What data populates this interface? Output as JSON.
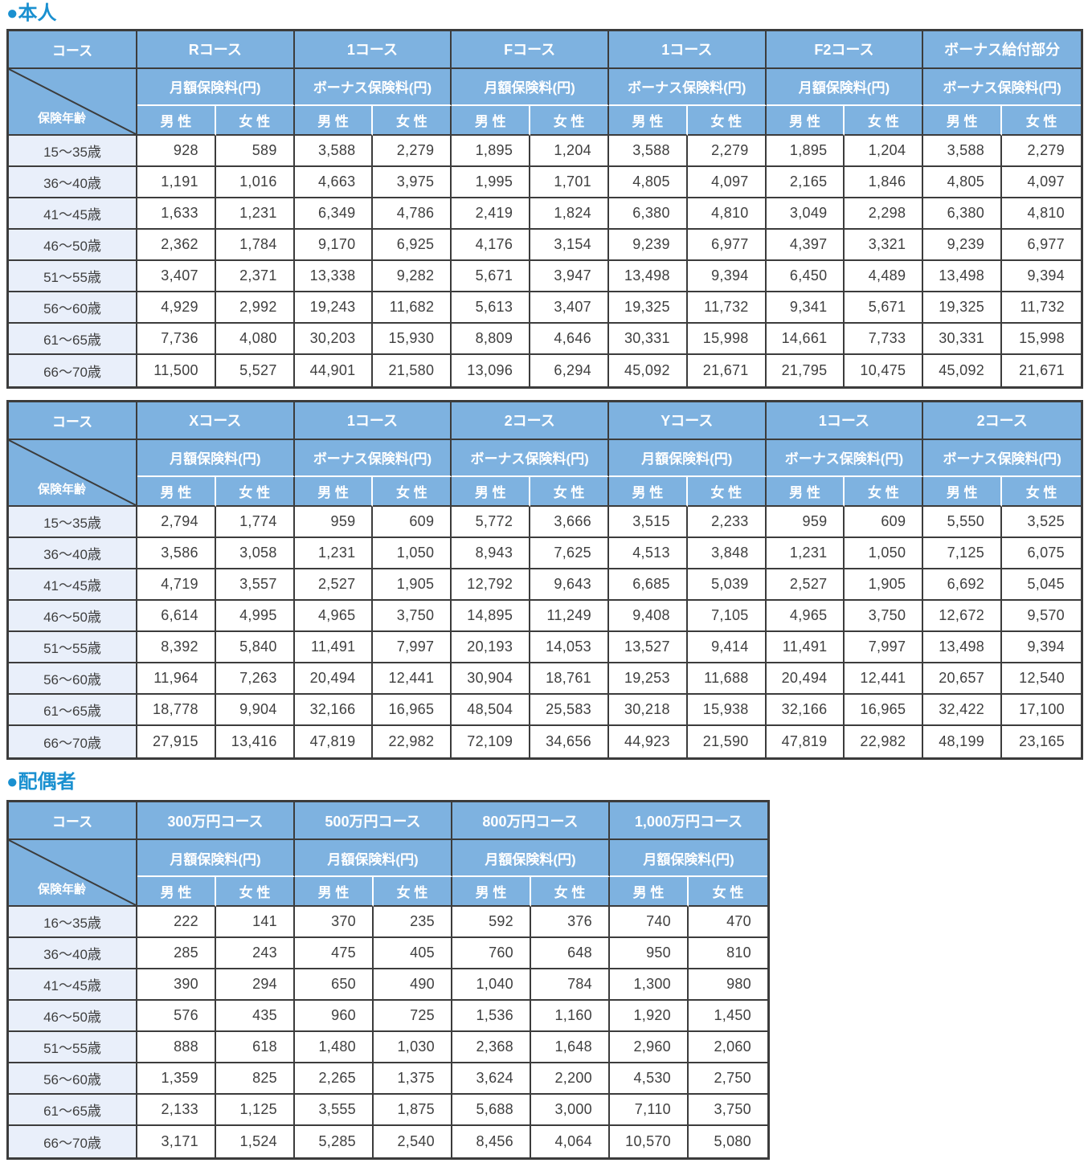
{
  "sections": {
    "person_title": "●本人",
    "spouse_title": "●配偶者"
  },
  "labels": {
    "course": "コース",
    "insurance_age": "保険年齢",
    "male": "男 性",
    "female": "女 性"
  },
  "colors": {
    "title_blue": "#1a90d0",
    "header_blue": "#7eb2e0",
    "age_cell_blue": "#e9effa",
    "border_dark": "#3c3c3c"
  },
  "tables": [
    {
      "section": "本人",
      "groups": [
        {
          "course": "Rコース",
          "premium_type": "月額保険料(円)"
        },
        {
          "course": "1コース",
          "premium_type": "ボーナス保険料(円)"
        },
        {
          "course": "Fコース",
          "premium_type": "月額保険料(円)"
        },
        {
          "course": "1コース",
          "premium_type": "ボーナス保険料(円)"
        },
        {
          "course": "F2コース",
          "premium_type": "月額保険料(円)"
        },
        {
          "course": "ボーナス給付部分",
          "premium_type": "ボーナス保険料(円)"
        }
      ],
      "rows": [
        {
          "age": "15〜35歳",
          "values": [
            "928",
            "589",
            "3,588",
            "2,279",
            "1,895",
            "1,204",
            "3,588",
            "2,279",
            "1,895",
            "1,204",
            "3,588",
            "2,279"
          ]
        },
        {
          "age": "36〜40歳",
          "values": [
            "1,191",
            "1,016",
            "4,663",
            "3,975",
            "1,995",
            "1,701",
            "4,805",
            "4,097",
            "2,165",
            "1,846",
            "4,805",
            "4,097"
          ]
        },
        {
          "age": "41〜45歳",
          "values": [
            "1,633",
            "1,231",
            "6,349",
            "4,786",
            "2,419",
            "1,824",
            "6,380",
            "4,810",
            "3,049",
            "2,298",
            "6,380",
            "4,810"
          ]
        },
        {
          "age": "46〜50歳",
          "values": [
            "2,362",
            "1,784",
            "9,170",
            "6,925",
            "4,176",
            "3,154",
            "9,239",
            "6,977",
            "4,397",
            "3,321",
            "9,239",
            "6,977"
          ]
        },
        {
          "age": "51〜55歳",
          "values": [
            "3,407",
            "2,371",
            "13,338",
            "9,282",
            "5,671",
            "3,947",
            "13,498",
            "9,394",
            "6,450",
            "4,489",
            "13,498",
            "9,394"
          ]
        },
        {
          "age": "56〜60歳",
          "values": [
            "4,929",
            "2,992",
            "19,243",
            "11,682",
            "5,613",
            "3,407",
            "19,325",
            "11,732",
            "9,341",
            "5,671",
            "19,325",
            "11,732"
          ]
        },
        {
          "age": "61〜65歳",
          "values": [
            "7,736",
            "4,080",
            "30,203",
            "15,930",
            "8,809",
            "4,646",
            "30,331",
            "15,998",
            "14,661",
            "7,733",
            "30,331",
            "15,998"
          ]
        },
        {
          "age": "66〜70歳",
          "values": [
            "11,500",
            "5,527",
            "44,901",
            "21,580",
            "13,096",
            "6,294",
            "45,092",
            "21,671",
            "21,795",
            "10,475",
            "45,092",
            "21,671"
          ]
        }
      ]
    },
    {
      "section": "本人",
      "groups": [
        {
          "course": "Xコース",
          "premium_type": "月額保険料(円)"
        },
        {
          "course": "1コース",
          "premium_type": "ボーナス保険料(円)"
        },
        {
          "course": "2コース",
          "premium_type": "ボーナス保険料(円)"
        },
        {
          "course": "Yコース",
          "premium_type": "月額保険料(円)"
        },
        {
          "course": "1コース",
          "premium_type": "ボーナス保険料(円)"
        },
        {
          "course": "2コース",
          "premium_type": "ボーナス保険料(円)"
        }
      ],
      "rows": [
        {
          "age": "15〜35歳",
          "values": [
            "2,794",
            "1,774",
            "959",
            "609",
            "5,772",
            "3,666",
            "3,515",
            "2,233",
            "959",
            "609",
            "5,550",
            "3,525"
          ]
        },
        {
          "age": "36〜40歳",
          "values": [
            "3,586",
            "3,058",
            "1,231",
            "1,050",
            "8,943",
            "7,625",
            "4,513",
            "3,848",
            "1,231",
            "1,050",
            "7,125",
            "6,075"
          ]
        },
        {
          "age": "41〜45歳",
          "values": [
            "4,719",
            "3,557",
            "2,527",
            "1,905",
            "12,792",
            "9,643",
            "6,685",
            "5,039",
            "2,527",
            "1,905",
            "6,692",
            "5,045"
          ]
        },
        {
          "age": "46〜50歳",
          "values": [
            "6,614",
            "4,995",
            "4,965",
            "3,750",
            "14,895",
            "11,249",
            "9,408",
            "7,105",
            "4,965",
            "3,750",
            "12,672",
            "9,570"
          ]
        },
        {
          "age": "51〜55歳",
          "values": [
            "8,392",
            "5,840",
            "11,491",
            "7,997",
            "20,193",
            "14,053",
            "13,527",
            "9,414",
            "11,491",
            "7,997",
            "13,498",
            "9,394"
          ]
        },
        {
          "age": "56〜60歳",
          "values": [
            "11,964",
            "7,263",
            "20,494",
            "12,441",
            "30,904",
            "18,761",
            "19,253",
            "11,688",
            "20,494",
            "12,441",
            "20,657",
            "12,540"
          ]
        },
        {
          "age": "61〜65歳",
          "values": [
            "18,778",
            "9,904",
            "32,166",
            "16,965",
            "48,504",
            "25,583",
            "30,218",
            "15,938",
            "32,166",
            "16,965",
            "32,422",
            "17,100"
          ]
        },
        {
          "age": "66〜70歳",
          "values": [
            "27,915",
            "13,416",
            "47,819",
            "22,982",
            "72,109",
            "34,656",
            "44,923",
            "21,590",
            "47,819",
            "22,982",
            "48,199",
            "23,165"
          ]
        }
      ]
    },
    {
      "section": "配偶者",
      "groups": [
        {
          "course": "300万円コース",
          "premium_type": "月額保険料(円)"
        },
        {
          "course": "500万円コース",
          "premium_type": "月額保険料(円)"
        },
        {
          "course": "800万円コース",
          "premium_type": "月額保険料(円)"
        },
        {
          "course": "1,000万円コース",
          "premium_type": "月額保険料(円)"
        }
      ],
      "rows": [
        {
          "age": "16〜35歳",
          "values": [
            "222",
            "141",
            "370",
            "235",
            "592",
            "376",
            "740",
            "470"
          ]
        },
        {
          "age": "36〜40歳",
          "values": [
            "285",
            "243",
            "475",
            "405",
            "760",
            "648",
            "950",
            "810"
          ]
        },
        {
          "age": "41〜45歳",
          "values": [
            "390",
            "294",
            "650",
            "490",
            "1,040",
            "784",
            "1,300",
            "980"
          ]
        },
        {
          "age": "46〜50歳",
          "values": [
            "576",
            "435",
            "960",
            "725",
            "1,536",
            "1,160",
            "1,920",
            "1,450"
          ]
        },
        {
          "age": "51〜55歳",
          "values": [
            "888",
            "618",
            "1,480",
            "1,030",
            "2,368",
            "1,648",
            "2,960",
            "2,060"
          ]
        },
        {
          "age": "56〜60歳",
          "values": [
            "1,359",
            "825",
            "2,265",
            "1,375",
            "3,624",
            "2,200",
            "4,530",
            "2,750"
          ]
        },
        {
          "age": "61〜65歳",
          "values": [
            "2,133",
            "1,125",
            "3,555",
            "1,875",
            "5,688",
            "3,000",
            "7,110",
            "3,750"
          ]
        },
        {
          "age": "66〜70歳",
          "values": [
            "3,171",
            "1,524",
            "5,285",
            "2,540",
            "8,456",
            "4,064",
            "10,570",
            "5,080"
          ]
        }
      ]
    }
  ]
}
